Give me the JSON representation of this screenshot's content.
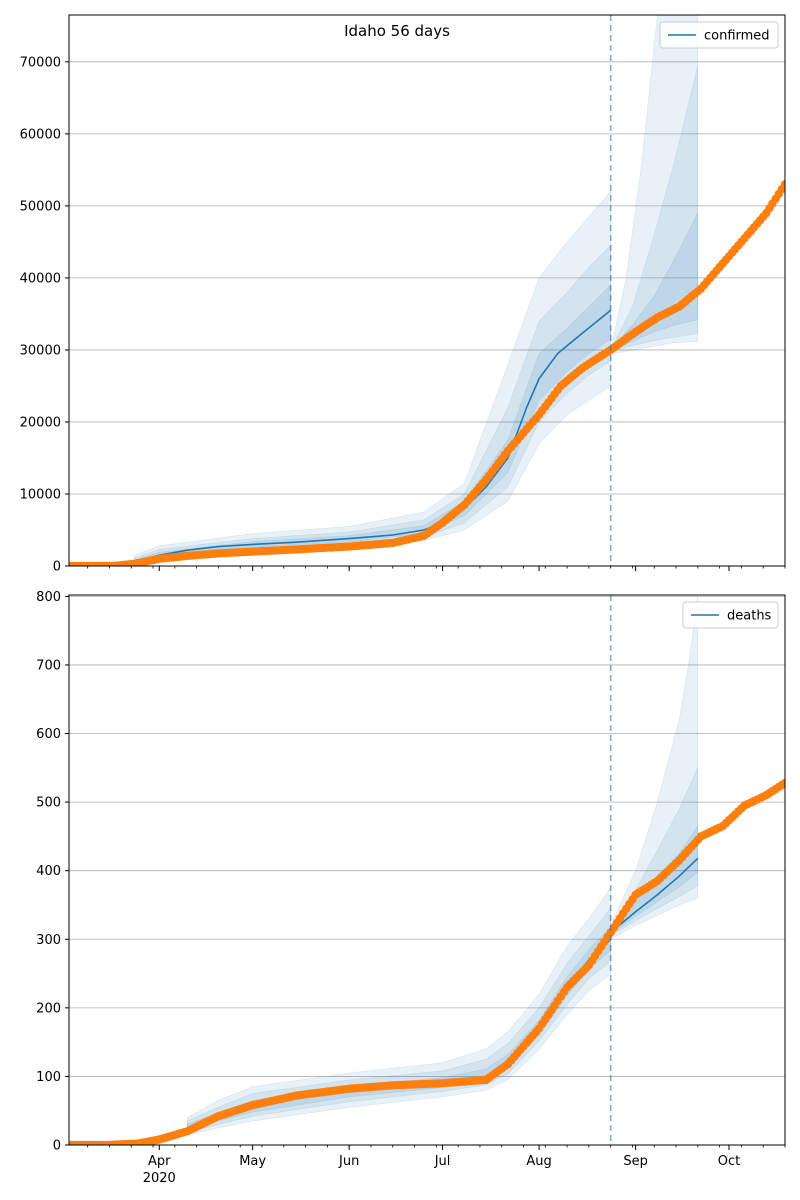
{
  "figure": {
    "title": "Idaho 56 days",
    "colors": {
      "model": "#1f77b4",
      "band": "#1f77b4",
      "observed": "#ff7f0e",
      "grid": "#b0b0b0",
      "cutoff": "#1f77b4"
    }
  },
  "chart_data": [
    {
      "type": "line",
      "panel": "top",
      "title": "Idaho 56 days",
      "xlabel": "",
      "ylabel": "",
      "x_axis": {
        "type": "date",
        "range": [
          "2020-03-03",
          "2020-10-19"
        ],
        "major_ticks": [
          {
            "date": "2020-04-01",
            "label": "Apr",
            "sublabel": "2020"
          },
          {
            "date": "2020-05-01",
            "label": "May",
            "sublabel": ""
          },
          {
            "date": "2020-06-01",
            "label": "Jun",
            "sublabel": ""
          },
          {
            "date": "2020-07-01",
            "label": "Jul",
            "sublabel": ""
          },
          {
            "date": "2020-08-01",
            "label": "Aug",
            "sublabel": ""
          },
          {
            "date": "2020-09-01",
            "label": "Sep",
            "sublabel": ""
          },
          {
            "date": "2020-10-01",
            "label": "Oct",
            "sublabel": ""
          }
        ],
        "tick_labels_shown": false
      },
      "y_axis": {
        "range": [
          0,
          76500
        ],
        "ticks": [
          0,
          10000,
          20000,
          30000,
          40000,
          50000,
          60000,
          70000
        ],
        "grid": true
      },
      "legend": {
        "placement": "top-right",
        "entries": [
          "confirmed"
        ]
      },
      "cutoff_date": "2020-08-24",
      "series": [
        {
          "name": "confirmed",
          "role": "model",
          "segments": [
            {
              "x": [
                "2020-03-24",
                "2020-04-01",
                "2020-04-10",
                "2020-04-20",
                "2020-05-01",
                "2020-05-15",
                "2020-06-01",
                "2020-06-15",
                "2020-06-25",
                "2020-07-01",
                "2020-07-08",
                "2020-07-15",
                "2020-07-22",
                "2020-07-28",
                "2020-08-01",
                "2020-08-07",
                "2020-08-14",
                "2020-08-24"
              ],
              "y": [
                500,
                1500,
                2200,
                2700,
                3000,
                3300,
                3800,
                4300,
                5000,
                6000,
                8000,
                11000,
                15000,
                22000,
                26000,
                29500,
                32000,
                35500
              ]
            },
            {
              "x": [
                "2020-08-24",
                "2020-09-01",
                "2020-09-08",
                "2020-09-15",
                "2020-09-21"
              ],
              "y": [
                30000,
                32000,
                34000,
                36500,
                38500
              ]
            }
          ],
          "bands": [
            {
              "segment": 0,
              "level": "outer",
              "x": [
                "2020-03-24",
                "2020-04-01",
                "2020-05-01",
                "2020-06-01",
                "2020-06-25",
                "2020-07-08",
                "2020-07-22",
                "2020-08-01",
                "2020-08-10",
                "2020-08-17",
                "2020-08-24"
              ],
              "lo": [
                100,
                800,
                2000,
                2500,
                3500,
                5000,
                9000,
                17000,
                21000,
                23000,
                25000
              ],
              "hi": [
                1500,
                2800,
                4500,
                5500,
                7500,
                11500,
                28000,
                40000,
                45000,
                48500,
                52000
              ]
            },
            {
              "segment": 0,
              "level": "middle",
              "x": [
                "2020-03-24",
                "2020-04-01",
                "2020-05-01",
                "2020-06-01",
                "2020-06-25",
                "2020-07-08",
                "2020-07-22",
                "2020-08-01",
                "2020-08-10",
                "2020-08-17",
                "2020-08-24"
              ],
              "lo": [
                200,
                1000,
                2300,
                2900,
                4000,
                6000,
                11000,
                20000,
                24000,
                26500,
                28500
              ],
              "hi": [
                1100,
                2300,
                3800,
                4700,
                6400,
                10000,
                22000,
                34000,
                38000,
                41500,
                44500
              ]
            },
            {
              "segment": 0,
              "level": "inner",
              "x": [
                "2020-03-24",
                "2020-04-01",
                "2020-05-01",
                "2020-06-01",
                "2020-06-25",
                "2020-07-08",
                "2020-07-22",
                "2020-08-01",
                "2020-08-10",
                "2020-08-17",
                "2020-08-24"
              ],
              "lo": [
                350,
                1250,
                2650,
                3350,
                4500,
                7000,
                13000,
                23000,
                27000,
                29500,
                31500
              ],
              "hi": [
                800,
                1900,
                3400,
                4200,
                5600,
                9000,
                17500,
                29500,
                33000,
                36000,
                39000
              ]
            },
            {
              "segment": 1,
              "level": "outer",
              "x": [
                "2020-08-24",
                "2020-08-29",
                "2020-09-03",
                "2020-09-08",
                "2020-09-13",
                "2020-09-18",
                "2020-09-21"
              ],
              "lo": [
                29500,
                29800,
                30200,
                30600,
                31000,
                31100,
                31200
              ],
              "hi": [
                30000,
                40000,
                56000,
                76500,
                76500,
                76500,
                76500
              ]
            },
            {
              "segment": 1,
              "level": "middle",
              "x": [
                "2020-08-24",
                "2020-08-31",
                "2020-09-07",
                "2020-09-14",
                "2020-09-21"
              ],
              "lo": [
                29800,
                30600,
                31300,
                31800,
                32300
              ],
              "hi": [
                30000,
                36000,
                46000,
                57000,
                69500
              ]
            },
            {
              "segment": 1,
              "level": "inner",
              "x": [
                "2020-08-24",
                "2020-08-31",
                "2020-09-07",
                "2020-09-14",
                "2020-09-21"
              ],
              "lo": [
                29900,
                31200,
                32500,
                33500,
                34200
              ],
              "hi": [
                30000,
                33500,
                37500,
                43000,
                49000
              ]
            }
          ]
        },
        {
          "role": "observed",
          "x": [
            "2020-03-03",
            "2020-03-10",
            "2020-03-17",
            "2020-03-24",
            "2020-04-01",
            "2020-04-10",
            "2020-04-20",
            "2020-05-01",
            "2020-05-15",
            "2020-06-01",
            "2020-06-15",
            "2020-06-25",
            "2020-07-01",
            "2020-07-08",
            "2020-07-15",
            "2020-07-22",
            "2020-08-01",
            "2020-08-08",
            "2020-08-15",
            "2020-08-24",
            "2020-09-01",
            "2020-09-08",
            "2020-09-15",
            "2020-09-22",
            "2020-09-29",
            "2020-10-06",
            "2020-10-13",
            "2020-10-19"
          ],
          "y": [
            0,
            0,
            0,
            300,
            1000,
            1400,
            1750,
            2000,
            2300,
            2700,
            3200,
            4200,
            6000,
            8500,
            12000,
            16000,
            21000,
            25000,
            27500,
            30000,
            32500,
            34500,
            36000,
            38500,
            42000,
            45500,
            49000,
            53000
          ]
        }
      ]
    },
    {
      "type": "line",
      "panel": "bottom",
      "title": "",
      "xlabel": "",
      "ylabel": "",
      "x_axis": {
        "type": "date",
        "range": [
          "2020-03-03",
          "2020-10-19"
        ],
        "major_ticks": [
          {
            "date": "2020-04-01",
            "label": "Apr",
            "sublabel": "2020"
          },
          {
            "date": "2020-05-01",
            "label": "May",
            "sublabel": ""
          },
          {
            "date": "2020-06-01",
            "label": "Jun",
            "sublabel": ""
          },
          {
            "date": "2020-07-01",
            "label": "Jul",
            "sublabel": ""
          },
          {
            "date": "2020-08-01",
            "label": "Aug",
            "sublabel": ""
          },
          {
            "date": "2020-09-01",
            "label": "Sep",
            "sublabel": ""
          },
          {
            "date": "2020-10-01",
            "label": "Oct",
            "sublabel": ""
          }
        ],
        "tick_labels_shown": true
      },
      "y_axis": {
        "range": [
          0,
          802
        ],
        "ticks": [
          0,
          100,
          200,
          300,
          400,
          500,
          600,
          700,
          800
        ],
        "grid": true
      },
      "legend": {
        "placement": "top-right",
        "entries": [
          "deaths"
        ]
      },
      "cutoff_date": "2020-08-24",
      "series": [
        {
          "name": "deaths",
          "role": "model",
          "segments": [
            {
              "x": [
                "2020-04-10",
                "2020-04-20",
                "2020-05-01",
                "2020-05-15",
                "2020-06-01",
                "2020-06-15",
                "2020-07-01",
                "2020-07-15",
                "2020-07-22",
                "2020-08-01",
                "2020-08-10",
                "2020-08-17",
                "2020-08-24"
              ],
              "y": [
                25,
                40,
                55,
                68,
                78,
                83,
                90,
                100,
                120,
                170,
                230,
                270,
                300
              ]
            },
            {
              "x": [
                "2020-08-24",
                "2020-09-01",
                "2020-09-08",
                "2020-09-15",
                "2020-09-21"
              ],
              "y": [
                310,
                340,
                365,
                392,
                418
              ]
            }
          ],
          "bands": [
            {
              "segment": 0,
              "level": "outer",
              "x": [
                "2020-04-10",
                "2020-04-20",
                "2020-05-01",
                "2020-06-01",
                "2020-07-01",
                "2020-07-15",
                "2020-07-22",
                "2020-08-01",
                "2020-08-10",
                "2020-08-17",
                "2020-08-24"
              ],
              "lo": [
                15,
                25,
                35,
                55,
                70,
                80,
                95,
                140,
                190,
                225,
                250
              ],
              "hi": [
                40,
                65,
                85,
                105,
                120,
                140,
                165,
                220,
                290,
                330,
                375
              ]
            },
            {
              "segment": 0,
              "level": "middle",
              "x": [
                "2020-04-10",
                "2020-04-20",
                "2020-05-01",
                "2020-06-01",
                "2020-07-01",
                "2020-07-15",
                "2020-07-22",
                "2020-08-01",
                "2020-08-10",
                "2020-08-17",
                "2020-08-24"
              ],
              "lo": [
                18,
                30,
                42,
                63,
                78,
                88,
                104,
                152,
                205,
                243,
                268
              ],
              "hi": [
                35,
                55,
                75,
                95,
                108,
                125,
                148,
                200,
                265,
                305,
                345
              ]
            },
            {
              "segment": 0,
              "level": "inner",
              "x": [
                "2020-04-10",
                "2020-04-20",
                "2020-05-01",
                "2020-06-01",
                "2020-07-01",
                "2020-07-15",
                "2020-07-22",
                "2020-08-01",
                "2020-08-10",
                "2020-08-17",
                "2020-08-24"
              ],
              "lo": [
                21,
                35,
                48,
                70,
                84,
                94,
                112,
                160,
                218,
                256,
                284
              ],
              "hi": [
                30,
                47,
                65,
                86,
                98,
                111,
                132,
                182,
                245,
                285,
                318
              ]
            },
            {
              "segment": 1,
              "level": "outer",
              "x": [
                "2020-08-24",
                "2020-09-01",
                "2020-09-08",
                "2020-09-15",
                "2020-09-18",
                "2020-09-21"
              ],
              "lo": [
                300,
                320,
                335,
                350,
                355,
                360
              ],
              "hi": [
                320,
                400,
                500,
                620,
                700,
                802
              ]
            },
            {
              "segment": 1,
              "level": "middle",
              "x": [
                "2020-08-24",
                "2020-09-01",
                "2020-09-08",
                "2020-09-15",
                "2020-09-21"
              ],
              "lo": [
                305,
                327,
                345,
                362,
                378
              ],
              "hi": [
                318,
                372,
                430,
                490,
                550
              ]
            },
            {
              "segment": 1,
              "level": "inner",
              "x": [
                "2020-08-24",
                "2020-09-01",
                "2020-09-08",
                "2020-09-15",
                "2020-09-21"
              ],
              "lo": [
                308,
                333,
                355,
                376,
                398
              ],
              "hi": [
                314,
                355,
                392,
                425,
                465
              ]
            }
          ]
        },
        {
          "role": "observed",
          "x": [
            "2020-03-03",
            "2020-03-15",
            "2020-03-25",
            "2020-04-01",
            "2020-04-10",
            "2020-04-20",
            "2020-05-01",
            "2020-05-15",
            "2020-06-01",
            "2020-06-15",
            "2020-07-01",
            "2020-07-15",
            "2020-07-22",
            "2020-08-01",
            "2020-08-10",
            "2020-08-17",
            "2020-08-24",
            "2020-09-01",
            "2020-09-08",
            "2020-09-15",
            "2020-09-22",
            "2020-09-29",
            "2020-10-06",
            "2020-10-13",
            "2020-10-19"
          ],
          "y": [
            0,
            0,
            2,
            8,
            20,
            42,
            58,
            72,
            82,
            87,
            90,
            95,
            118,
            170,
            230,
            262,
            310,
            365,
            385,
            415,
            450,
            465,
            495,
            510,
            528
          ]
        }
      ]
    }
  ]
}
